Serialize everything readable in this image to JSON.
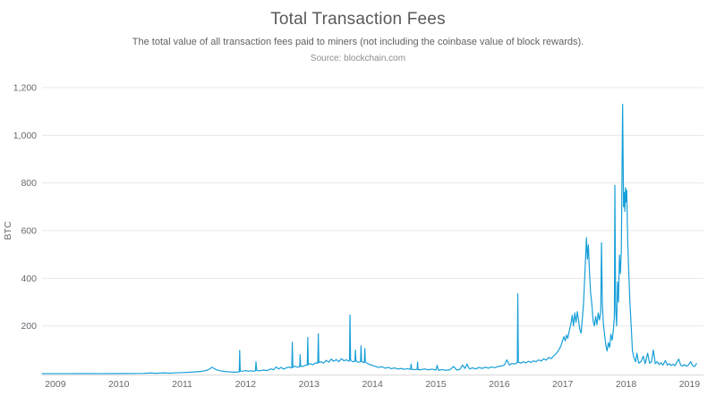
{
  "header": {
    "title": "Total Transaction Fees",
    "subtitle": "The total value of all transaction fees paid to miners (not including the coinbase value of block rewards).",
    "source": "Source: blockchain.com"
  },
  "chart_data": {
    "type": "line",
    "title": "Total Transaction Fees",
    "subtitle": "The total value of all transaction fees paid to miners (not including the coinbase value of block rewards).",
    "source": "Source: blockchain.com",
    "xlabel": "",
    "ylabel": "BTC",
    "legend": false,
    "grid": true,
    "line_color": "#179fd8",
    "grid_color": "#e8e8e8",
    "xlim": [
      2008.79,
      2019.22
    ],
    "ylim": [
      0,
      1200
    ],
    "x_ticks": [
      2009,
      2010,
      2011,
      2012,
      2013,
      2014,
      2015,
      2016,
      2017,
      2018,
      2019
    ],
    "x_tick_labels": [
      "2009",
      "2010",
      "2011",
      "2012",
      "2013",
      "2014",
      "2015",
      "2016",
      "2017",
      "2018",
      "2019"
    ],
    "y_ticks": [
      200,
      400,
      600,
      800,
      1000,
      1200
    ],
    "y_tick_labels": [
      "200",
      "400",
      "600",
      "800",
      "1,000",
      "1,200"
    ],
    "series": [
      {
        "name": "Total Transaction Fees (BTC)",
        "x": [
          2008.79,
          2009.0,
          2009.25,
          2009.5,
          2009.75,
          2010.0,
          2010.2,
          2010.4,
          2010.5,
          2010.6,
          2010.7,
          2010.8,
          2010.9,
          2011.0,
          2011.1,
          2011.2,
          2011.28,
          2011.34,
          2011.4,
          2011.44,
          2011.47,
          2011.5,
          2011.54,
          2011.6,
          2011.68,
          2011.76,
          2011.84,
          2011.9,
          2011.906,
          2011.915,
          2011.96,
          2012.0,
          2012.04,
          2012.08,
          2012.12,
          2012.155,
          2012.163,
          2012.175,
          2012.22,
          2012.28,
          2012.34,
          2012.4,
          2012.44,
          2012.48,
          2012.52,
          2012.56,
          2012.6,
          2012.64,
          2012.68,
          2012.72,
          2012.728,
          2012.736,
          2012.745,
          2012.78,
          2012.82,
          2012.852,
          2012.86,
          2012.868,
          2012.9,
          2012.94,
          2012.972,
          2012.98,
          2012.988,
          2013.02,
          2013.06,
          2013.1,
          2013.138,
          2013.146,
          2013.155,
          2013.19,
          2013.23,
          2013.27,
          2013.31,
          2013.35,
          2013.39,
          2013.43,
          2013.47,
          2013.51,
          2013.55,
          2013.59,
          2013.63,
          2013.638,
          2013.646,
          2013.655,
          2013.69,
          2013.724,
          2013.732,
          2013.74,
          2013.77,
          2013.812,
          2013.82,
          2013.828,
          2013.86,
          2013.872,
          2013.88,
          2013.888,
          2013.92,
          2013.96,
          2014.0,
          2014.05,
          2014.1,
          2014.15,
          2014.2,
          2014.25,
          2014.3,
          2014.35,
          2014.4,
          2014.45,
          2014.5,
          2014.55,
          2014.6,
          2014.61,
          2014.62,
          2014.66,
          2014.705,
          2014.712,
          2014.72,
          2014.76,
          2014.82,
          2014.88,
          2014.94,
          2015.0,
          2015.02,
          2015.04,
          2015.1,
          2015.16,
          2015.22,
          2015.28,
          2015.33,
          2015.38,
          2015.42,
          2015.46,
          2015.49,
          2015.53,
          2015.58,
          2015.63,
          2015.68,
          2015.73,
          2015.78,
          2015.83,
          2015.88,
          2015.93,
          2015.98,
          2016.03,
          2016.08,
          2016.12,
          2016.16,
          2016.2,
          2016.24,
          2016.285,
          2016.292,
          2016.301,
          2016.34,
          2016.38,
          2016.42,
          2016.46,
          2016.5,
          2016.54,
          2016.58,
          2016.62,
          2016.66,
          2016.7,
          2016.74,
          2016.78,
          2016.82,
          2016.86,
          2016.9,
          2016.94,
          2016.97,
          2017.0,
          2017.02,
          2017.04,
          2017.06,
          2017.08,
          2017.1,
          2017.13,
          2017.15,
          2017.17,
          2017.19,
          2017.21,
          2017.23,
          2017.25,
          2017.27,
          2017.29,
          2017.31,
          2017.33,
          2017.35,
          2017.375,
          2017.39,
          2017.405,
          2017.42,
          2017.44,
          2017.46,
          2017.48,
          2017.5,
          2017.52,
          2017.54,
          2017.56,
          2017.58,
          2017.6,
          2017.612,
          2017.625,
          2017.64,
          2017.66,
          2017.68,
          2017.7,
          2017.72,
          2017.74,
          2017.76,
          2017.78,
          2017.8,
          2017.815,
          2017.823,
          2017.835,
          2017.85,
          2017.865,
          2017.88,
          2017.895,
          2017.91,
          2017.925,
          2017.945,
          2017.96,
          2017.97,
          2017.98,
          2017.99,
          2018.0,
          2018.01,
          2018.025,
          2018.04,
          2018.06,
          2018.08,
          2018.1,
          2018.12,
          2018.15,
          2018.17,
          2018.2,
          2018.24,
          2018.27,
          2018.3,
          2018.34,
          2018.37,
          2018.4,
          2018.43,
          2018.46,
          2018.49,
          2018.52,
          2018.55,
          2018.58,
          2018.62,
          2018.65,
          2018.68,
          2018.71,
          2018.74,
          2018.77,
          2018.8,
          2018.83,
          2018.86,
          2018.89,
          2018.92,
          2018.95,
          2018.98,
          2019.02,
          2019.05,
          2019.08,
          2019.11
        ],
        "y": [
          0.2,
          0.3,
          0.3,
          0.4,
          0.3,
          0.5,
          0.8,
          1.2,
          2.8,
          1.5,
          3.2,
          2.0,
          3.6,
          4.5,
          5.5,
          7.5,
          9,
          11,
          15,
          21,
          27,
          22,
          16,
          12,
          9,
          7,
          6,
          8,
          97,
          10,
          11,
          13,
          10,
          12,
          10,
          12,
          50,
          13,
          12,
          15,
          13,
          20,
          16,
          28,
          20,
          26,
          19,
          24,
          28,
          24,
          25,
          132,
          27,
          31,
          27,
          29,
          80,
          31,
          30,
          35,
          36,
          152,
          38,
          42,
          37,
          45,
          44,
          167,
          47,
          50,
          44,
          56,
          48,
          61,
          52,
          59,
          50,
          63,
          54,
          58,
          52,
          55,
          246,
          57,
          50,
          52,
          99,
          54,
          48,
          50,
          117,
          52,
          46,
          48,
          105,
          49,
          43,
          38,
          35,
          30,
          26,
          29,
          23,
          26,
          21,
          24,
          19,
          22,
          18,
          21,
          18,
          40,
          18,
          17,
          18,
          49,
          17,
          16,
          20,
          16,
          19,
          15,
          35,
          14,
          17,
          14,
          16,
          30,
          15,
          18,
          36,
          22,
          40,
          20,
          24,
          20,
          26,
          22,
          27,
          23,
          28,
          25,
          30,
          32,
          36,
          58,
          36,
          43,
          40,
          46,
          335,
          48,
          44,
          50,
          45,
          52,
          47,
          54,
          50,
          58,
          53,
          62,
          57,
          68,
          63,
          75,
          85,
          100,
          115,
          140,
          155,
          138,
          162,
          148,
          175,
          210,
          245,
          200,
          255,
          215,
          260,
          225,
          185,
          170,
          230,
          300,
          420,
          570,
          480,
          540,
          440,
          340,
          290,
          220,
          200,
          240,
          205,
          255,
          225,
          260,
          549,
          300,
          215,
          165,
          120,
          95,
          130,
          110,
          165,
          140,
          185,
          240,
          790,
          280,
          200,
          385,
          300,
          498,
          420,
          520,
          1130,
          700,
          760,
          680,
          780,
          720,
          770,
          560,
          440,
          300,
          200,
          95,
          70,
          50,
          86,
          44,
          52,
          74,
          42,
          86,
          44,
          50,
          99,
          42,
          50,
          38,
          46,
          36,
          55,
          36,
          42,
          34,
          40,
          33,
          48,
          61,
          36,
          32,
          38,
          31,
          36,
          50,
          33,
          30,
          42
        ]
      }
    ]
  }
}
